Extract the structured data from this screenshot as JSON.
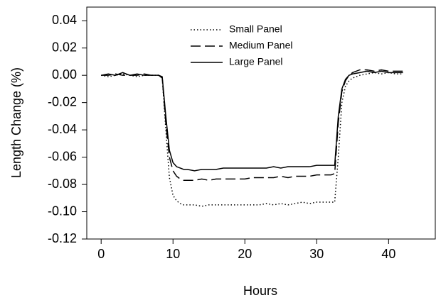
{
  "chart_data": {
    "type": "line",
    "x_label": "Hours",
    "y_label": "Length Change (%)",
    "x": [
      0,
      1,
      2,
      3,
      4,
      5,
      6,
      7,
      8,
      8.5,
      9,
      9.5,
      10,
      10.5,
      11,
      11.5,
      12,
      13,
      14,
      15,
      16,
      17,
      18,
      19,
      20,
      21,
      22,
      23,
      24,
      25,
      26,
      27,
      28,
      29,
      30,
      31,
      32,
      32.5,
      33,
      33.5,
      34,
      34.5,
      35,
      36,
      37,
      38,
      39,
      40,
      41,
      42
    ],
    "series": [
      {
        "name": "Small Panel",
        "color": "#000000",
        "dash": "1.5,3",
        "values": [
          0,
          -0.001,
          0,
          0.001,
          0,
          -0.001,
          0,
          0,
          0,
          -0.002,
          -0.04,
          -0.075,
          -0.088,
          -0.092,
          -0.094,
          -0.095,
          -0.095,
          -0.095,
          -0.096,
          -0.095,
          -0.095,
          -0.095,
          -0.095,
          -0.095,
          -0.095,
          -0.095,
          -0.095,
          -0.094,
          -0.095,
          -0.094,
          -0.095,
          -0.094,
          -0.093,
          -0.094,
          -0.093,
          -0.093,
          -0.093,
          -0.093,
          -0.06,
          -0.02,
          -0.008,
          -0.004,
          -0.002,
          0,
          0.001,
          0.002,
          0.001,
          0.002,
          0.001,
          0.001
        ]
      },
      {
        "name": "Medium Panel",
        "color": "#000000",
        "dash": "14,6",
        "values": [
          0,
          0,
          0.001,
          0,
          0,
          0,
          0.001,
          0,
          0,
          -0.002,
          -0.035,
          -0.06,
          -0.07,
          -0.074,
          -0.076,
          -0.077,
          -0.077,
          -0.077,
          -0.076,
          -0.077,
          -0.076,
          -0.076,
          -0.076,
          -0.076,
          -0.076,
          -0.075,
          -0.075,
          -0.075,
          -0.075,
          -0.074,
          -0.075,
          -0.074,
          -0.074,
          -0.074,
          -0.073,
          -0.073,
          -0.073,
          -0.072,
          -0.035,
          -0.012,
          -0.004,
          0,
          0.002,
          0.004,
          0.004,
          0.003,
          0.004,
          0.003,
          0.003,
          0.003
        ]
      },
      {
        "name": "Large Panel",
        "color": "#000000",
        "dash": "none",
        "values": [
          0,
          0.001,
          0,
          0.002,
          0,
          0.001,
          0,
          0,
          0,
          -0.001,
          -0.03,
          -0.055,
          -0.064,
          -0.067,
          -0.068,
          -0.069,
          -0.069,
          -0.07,
          -0.069,
          -0.069,
          -0.069,
          -0.068,
          -0.068,
          -0.068,
          -0.068,
          -0.068,
          -0.068,
          -0.068,
          -0.067,
          -0.068,
          -0.067,
          -0.067,
          -0.067,
          -0.067,
          -0.066,
          -0.066,
          -0.066,
          -0.066,
          -0.03,
          -0.01,
          -0.003,
          0,
          0.001,
          0.002,
          0.003,
          0.002,
          0.003,
          0.002,
          0.002,
          0.002
        ]
      }
    ],
    "xlim": [
      -2,
      46.5
    ],
    "xticks": [
      0,
      10,
      20,
      30,
      40
    ],
    "ylim": [
      -0.12,
      0.05
    ],
    "yticks": [
      -0.12,
      {
        "value": -0.1,
        "label": "-0.10"
      },
      -0.08,
      -0.06,
      -0.04,
      -0.02,
      {
        "value": 0,
        "label": "0.00"
      },
      0.02,
      0.04
    ],
    "grid": false,
    "legend": "top"
  }
}
